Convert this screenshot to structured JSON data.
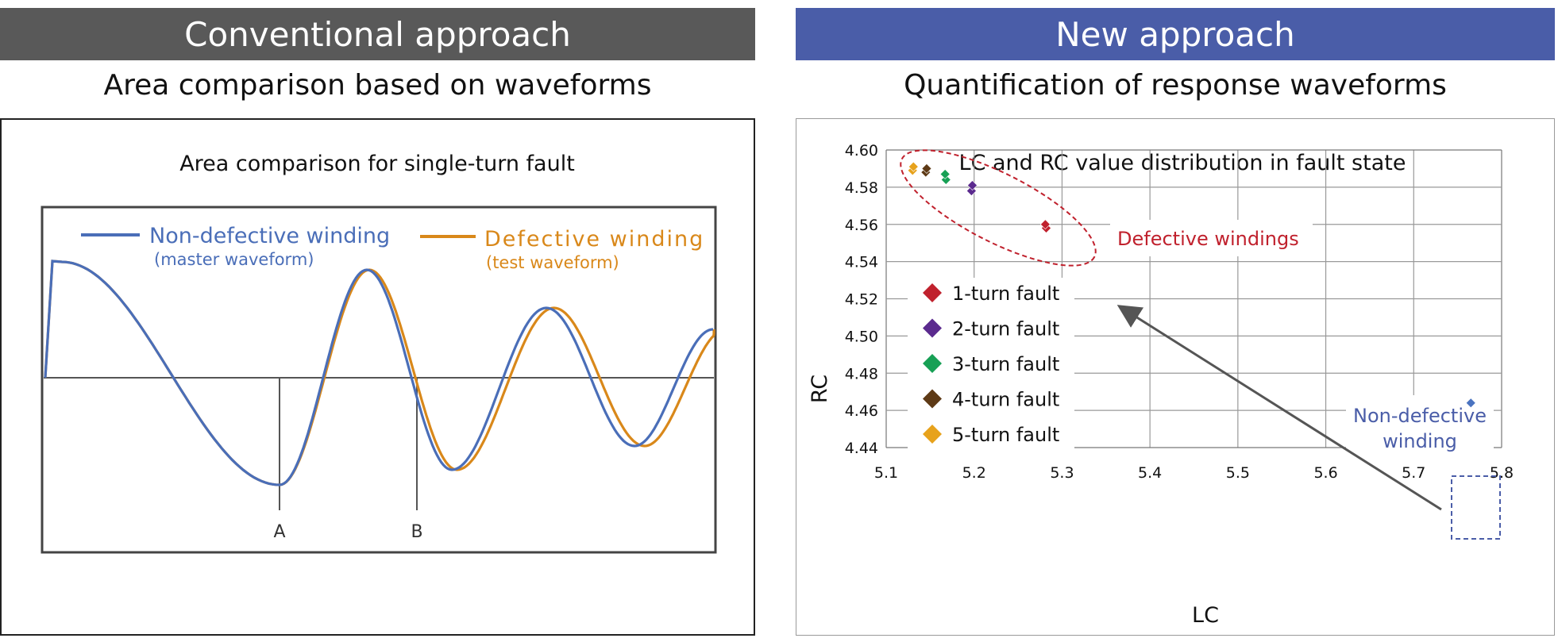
{
  "left": {
    "header": "Conventional approach",
    "subtitle": "Area comparison based on waveforms",
    "header_color": "#595959"
  },
  "right": {
    "header": "New approach",
    "subtitle": "Quantification of response waveforms",
    "header_color": "#4a5da8"
  },
  "waveform_chart": {
    "title": "Area comparison for single-turn fault",
    "legend": [
      {
        "label": "Non-defective winding",
        "sublabel": "(master waveform)",
        "color": "#4a6eb8"
      },
      {
        "label": "Defective winding",
        "sublabel": "(test waveform)",
        "color": "#d9881a"
      }
    ],
    "markers": [
      "A",
      "B"
    ]
  },
  "chart_data": {
    "type": "scatter",
    "title": "LC and RC value distribution in fault state",
    "xlabel": "LC",
    "ylabel": "RC",
    "xlim": [
      5.1,
      5.8
    ],
    "ylim": [
      4.44,
      4.6
    ],
    "xticks": [
      "5.1",
      "5.2",
      "5.3",
      "5.4",
      "5.5",
      "5.6",
      "5.7",
      "5.8"
    ],
    "yticks": [
      "4.44",
      "4.46",
      "4.48",
      "4.50",
      "4.52",
      "4.54",
      "4.56",
      "4.58",
      "4.60"
    ],
    "grid": true,
    "legend_position": "left",
    "series": [
      {
        "name": "1-turn fault",
        "color": "#c0212d",
        "points": [
          [
            5.282,
            4.558
          ],
          [
            5.281,
            4.56
          ]
        ]
      },
      {
        "name": "2-turn fault",
        "color": "#5b2a8e",
        "points": [
          [
            5.197,
            4.578
          ],
          [
            5.198,
            4.581
          ]
        ]
      },
      {
        "name": "3-turn fault",
        "color": "#17a055",
        "points": [
          [
            5.168,
            4.584
          ],
          [
            5.167,
            4.587
          ]
        ]
      },
      {
        "name": "4-turn fault",
        "color": "#5e3a16",
        "points": [
          [
            5.145,
            4.588
          ],
          [
            5.146,
            4.59
          ]
        ]
      },
      {
        "name": "5-turn fault",
        "color": "#e7a21c",
        "points": [
          [
            5.13,
            4.589
          ],
          [
            5.131,
            4.591
          ]
        ]
      },
      {
        "name": "",
        "color": "#4a73c0",
        "points": [
          [
            5.765,
            4.464
          ]
        ]
      }
    ],
    "annotations": {
      "defective": {
        "text": "Defective windings",
        "color": "#c0212d"
      },
      "non_defective": {
        "line1": "Non-defective",
        "line2": "winding",
        "color": "#4a5da8"
      }
    }
  }
}
